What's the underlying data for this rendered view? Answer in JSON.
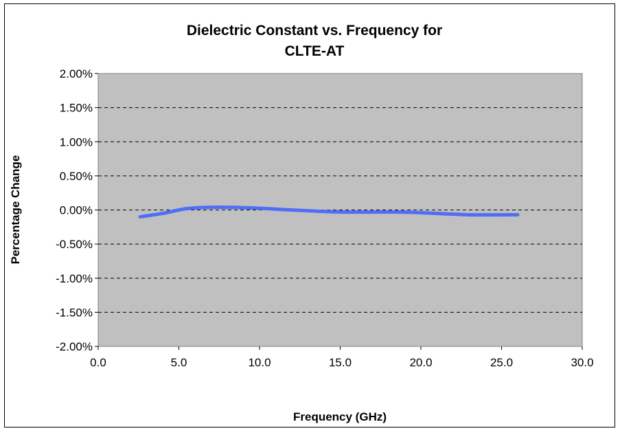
{
  "chart_data": {
    "type": "line",
    "title_line1": "Dielectric Constant vs. Frequency for",
    "title_line2": "CLTE-AT",
    "xlabel": "Frequency (GHz)",
    "ylabel": "Percentage Change",
    "xlim": [
      0,
      30
    ],
    "ylim": [
      -2.0,
      2.0
    ],
    "x_ticks": [
      "0.0",
      "5.0",
      "10.0",
      "15.0",
      "20.0",
      "25.0",
      "30.0"
    ],
    "y_ticks": [
      "2.00%",
      "1.50%",
      "1.00%",
      "0.50%",
      "0.00%",
      "-0.50%",
      "-1.00%",
      "-1.50%",
      "-2.00%"
    ],
    "grid": "horizontal dashed",
    "legend": "none",
    "series": [
      {
        "x": [
          2.6,
          4.0,
          5.5,
          7.3,
          9.5,
          12.0,
          15.0,
          18.5,
          20.0,
          23.0,
          26.0
        ],
        "y": [
          -0.1,
          -0.05,
          0.02,
          0.04,
          0.03,
          0.0,
          -0.03,
          -0.03,
          -0.04,
          -0.07,
          -0.07
        ],
        "color": "#4f6ef5"
      }
    ],
    "plot_background": "#c0c0c0"
  }
}
